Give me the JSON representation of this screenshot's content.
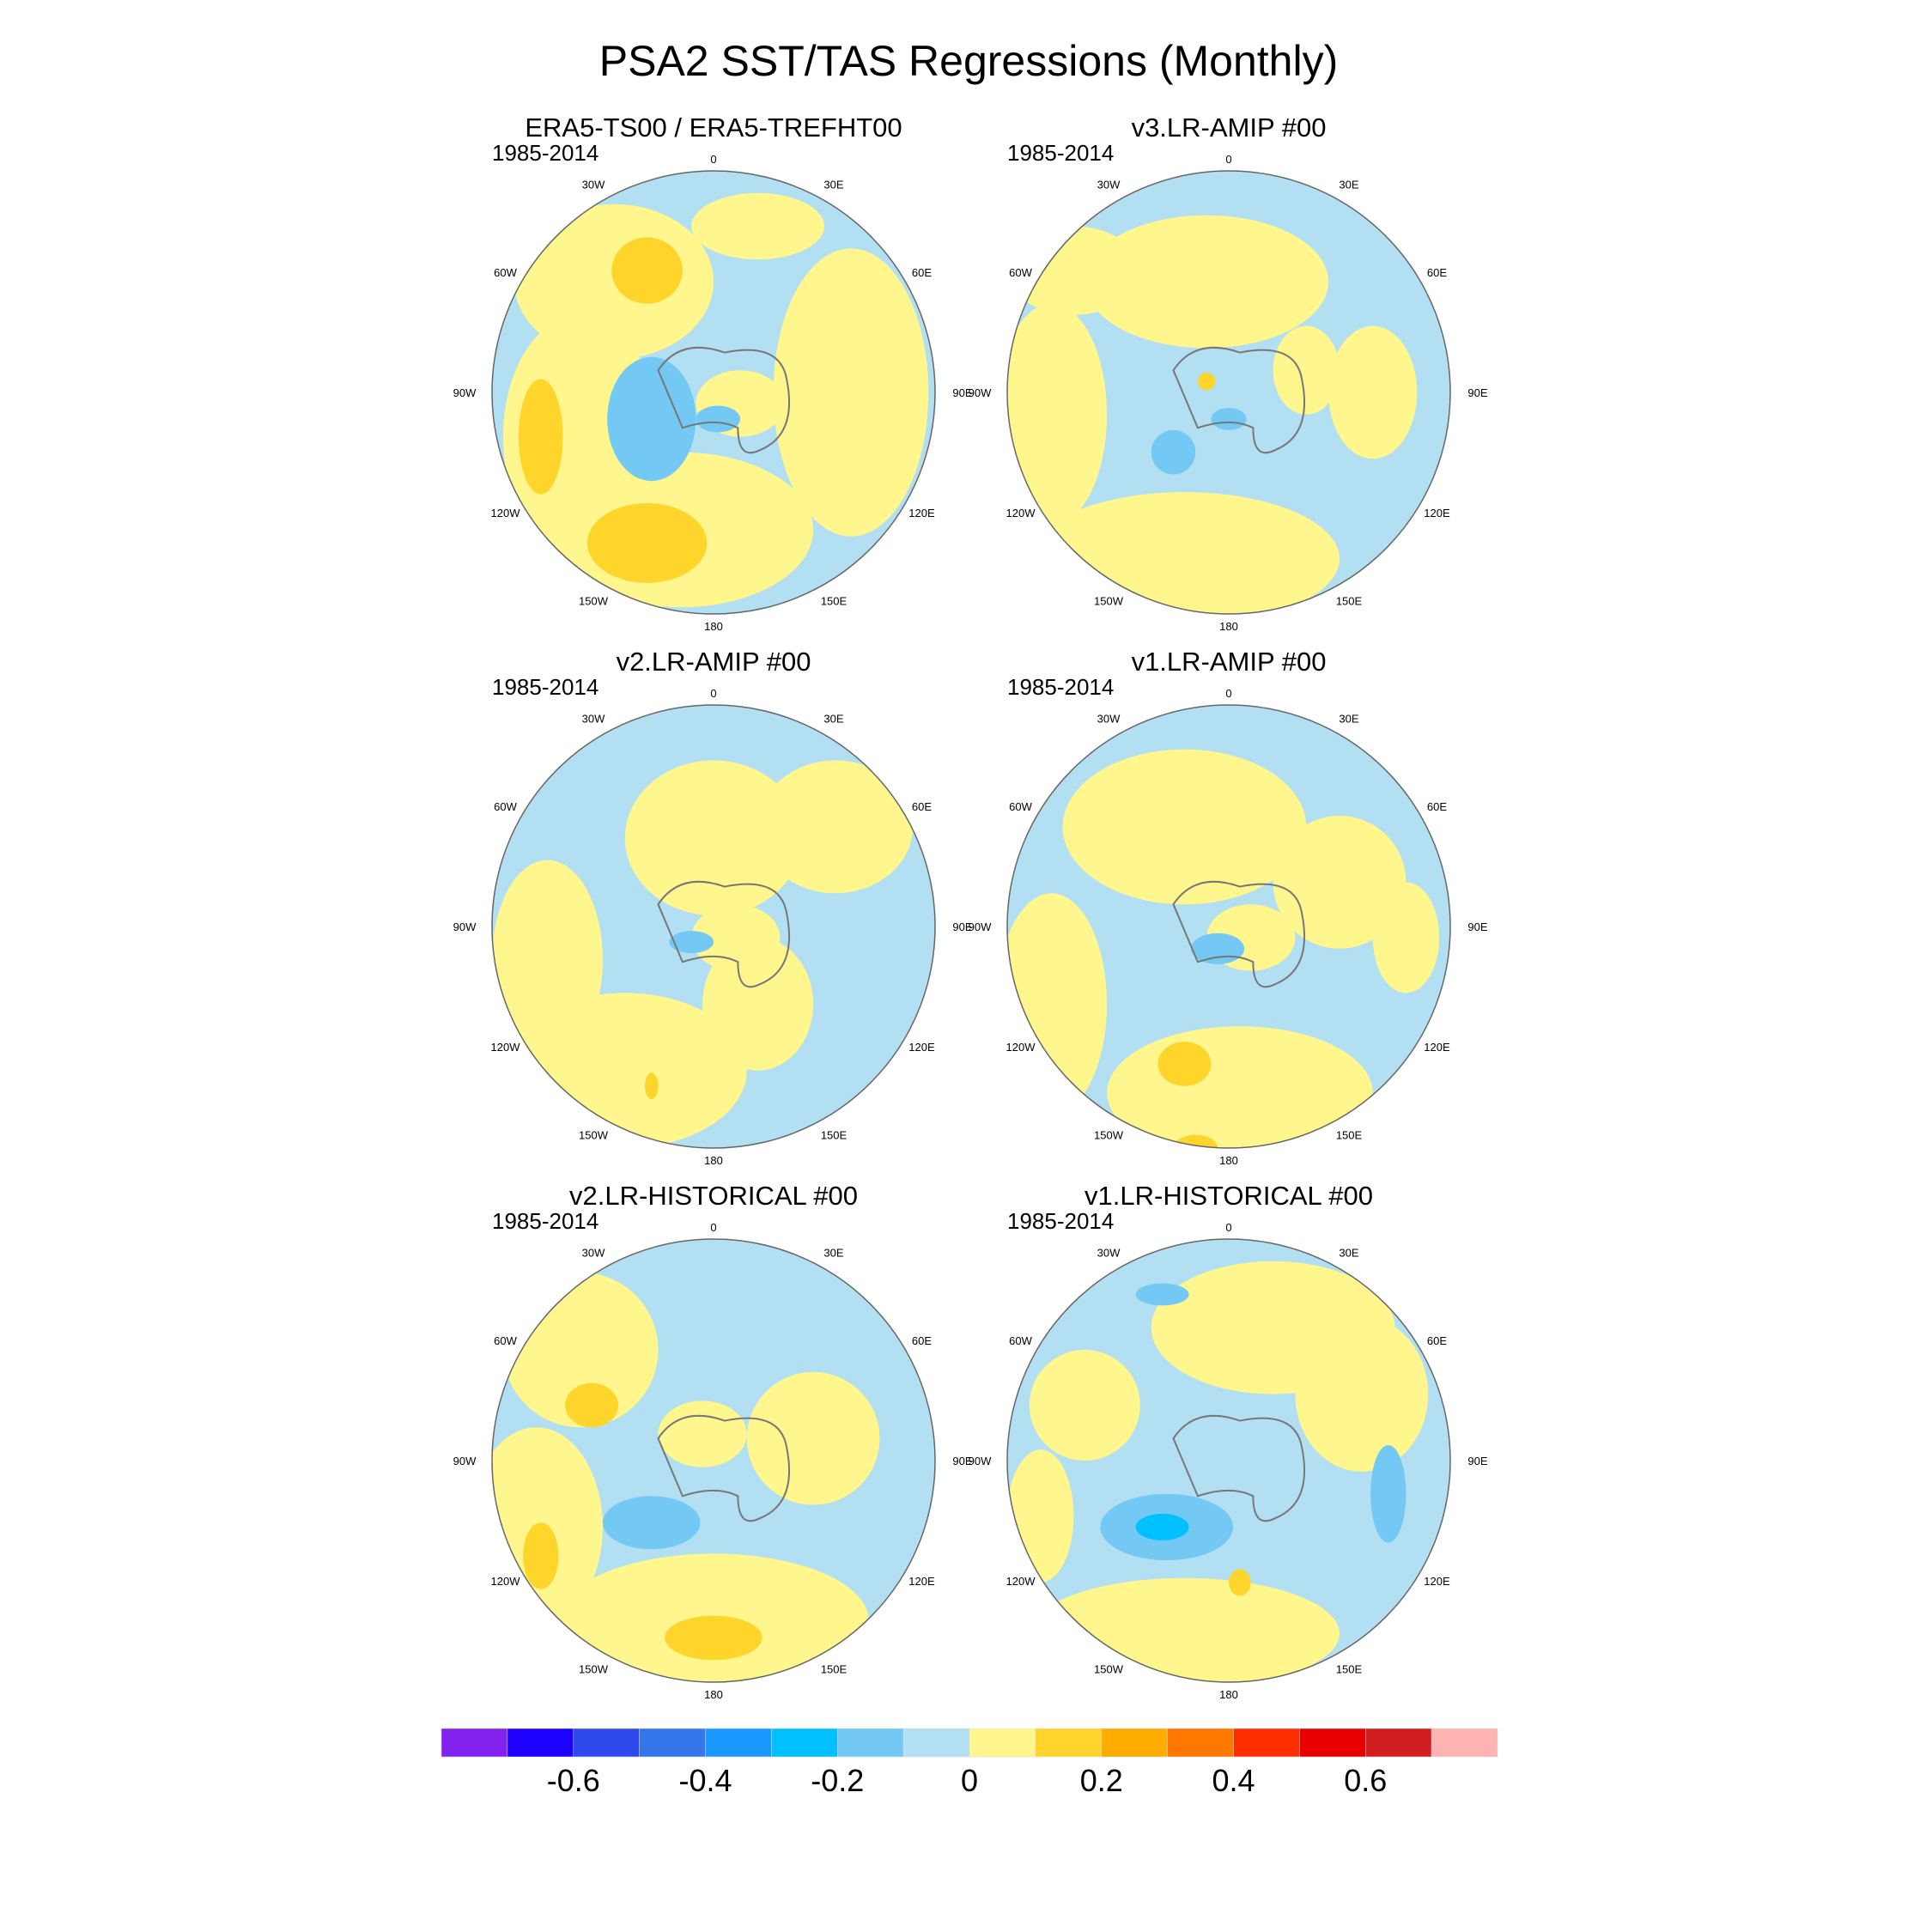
{
  "chart_data": {
    "type": "heatmap",
    "title": "PSA2 SST/TAS Regressions (Monthly)",
    "projection": "south-polar stereographic",
    "panels": [
      {
        "title": "ERA5-TS00 / ERA5-TREFHT00",
        "period": "1985-2014"
      },
      {
        "title": "v3.LR-AMIP  #00",
        "period": "1985-2014"
      },
      {
        "title": "v2.LR-AMIP  #00",
        "period": "1985-2014"
      },
      {
        "title": "v1.LR-AMIP  #00",
        "period": "1985-2014"
      },
      {
        "title": "v2.LR-HISTORICAL  #00",
        "period": "1985-2014"
      },
      {
        "title": "v1.LR-HISTORICAL  #00",
        "period": "1985-2014"
      }
    ],
    "lon_labels": [
      "0",
      "30E",
      "60E",
      "90E",
      "120E",
      "150E",
      "180",
      "150W",
      "120W",
      "90W",
      "60W",
      "30W"
    ],
    "colorbar": {
      "levels": [
        -0.7,
        -0.6,
        -0.5,
        -0.4,
        -0.3,
        -0.2,
        -0.1,
        0,
        0.1,
        0.2,
        0.3,
        0.4,
        0.5,
        0.6,
        0.7
      ],
      "colors": [
        "#8322EE",
        "#1E00FF",
        "#2E49EC",
        "#3477EB",
        "#1B98FF",
        "#00C0FF",
        "#73C8F4",
        "#B3DFF3",
        "#FFF78E",
        "#FFD52B",
        "#FFAC00",
        "#FF7800",
        "#FF2E00",
        "#E80000",
        "#D21E1E",
        "#FFB3B3"
      ],
      "tick_labels": [
        "-0.6",
        "-0.4",
        "-0.2",
        "0",
        "0.2",
        "0.4",
        "0.6"
      ]
    },
    "land_outline_color": "#777777"
  }
}
